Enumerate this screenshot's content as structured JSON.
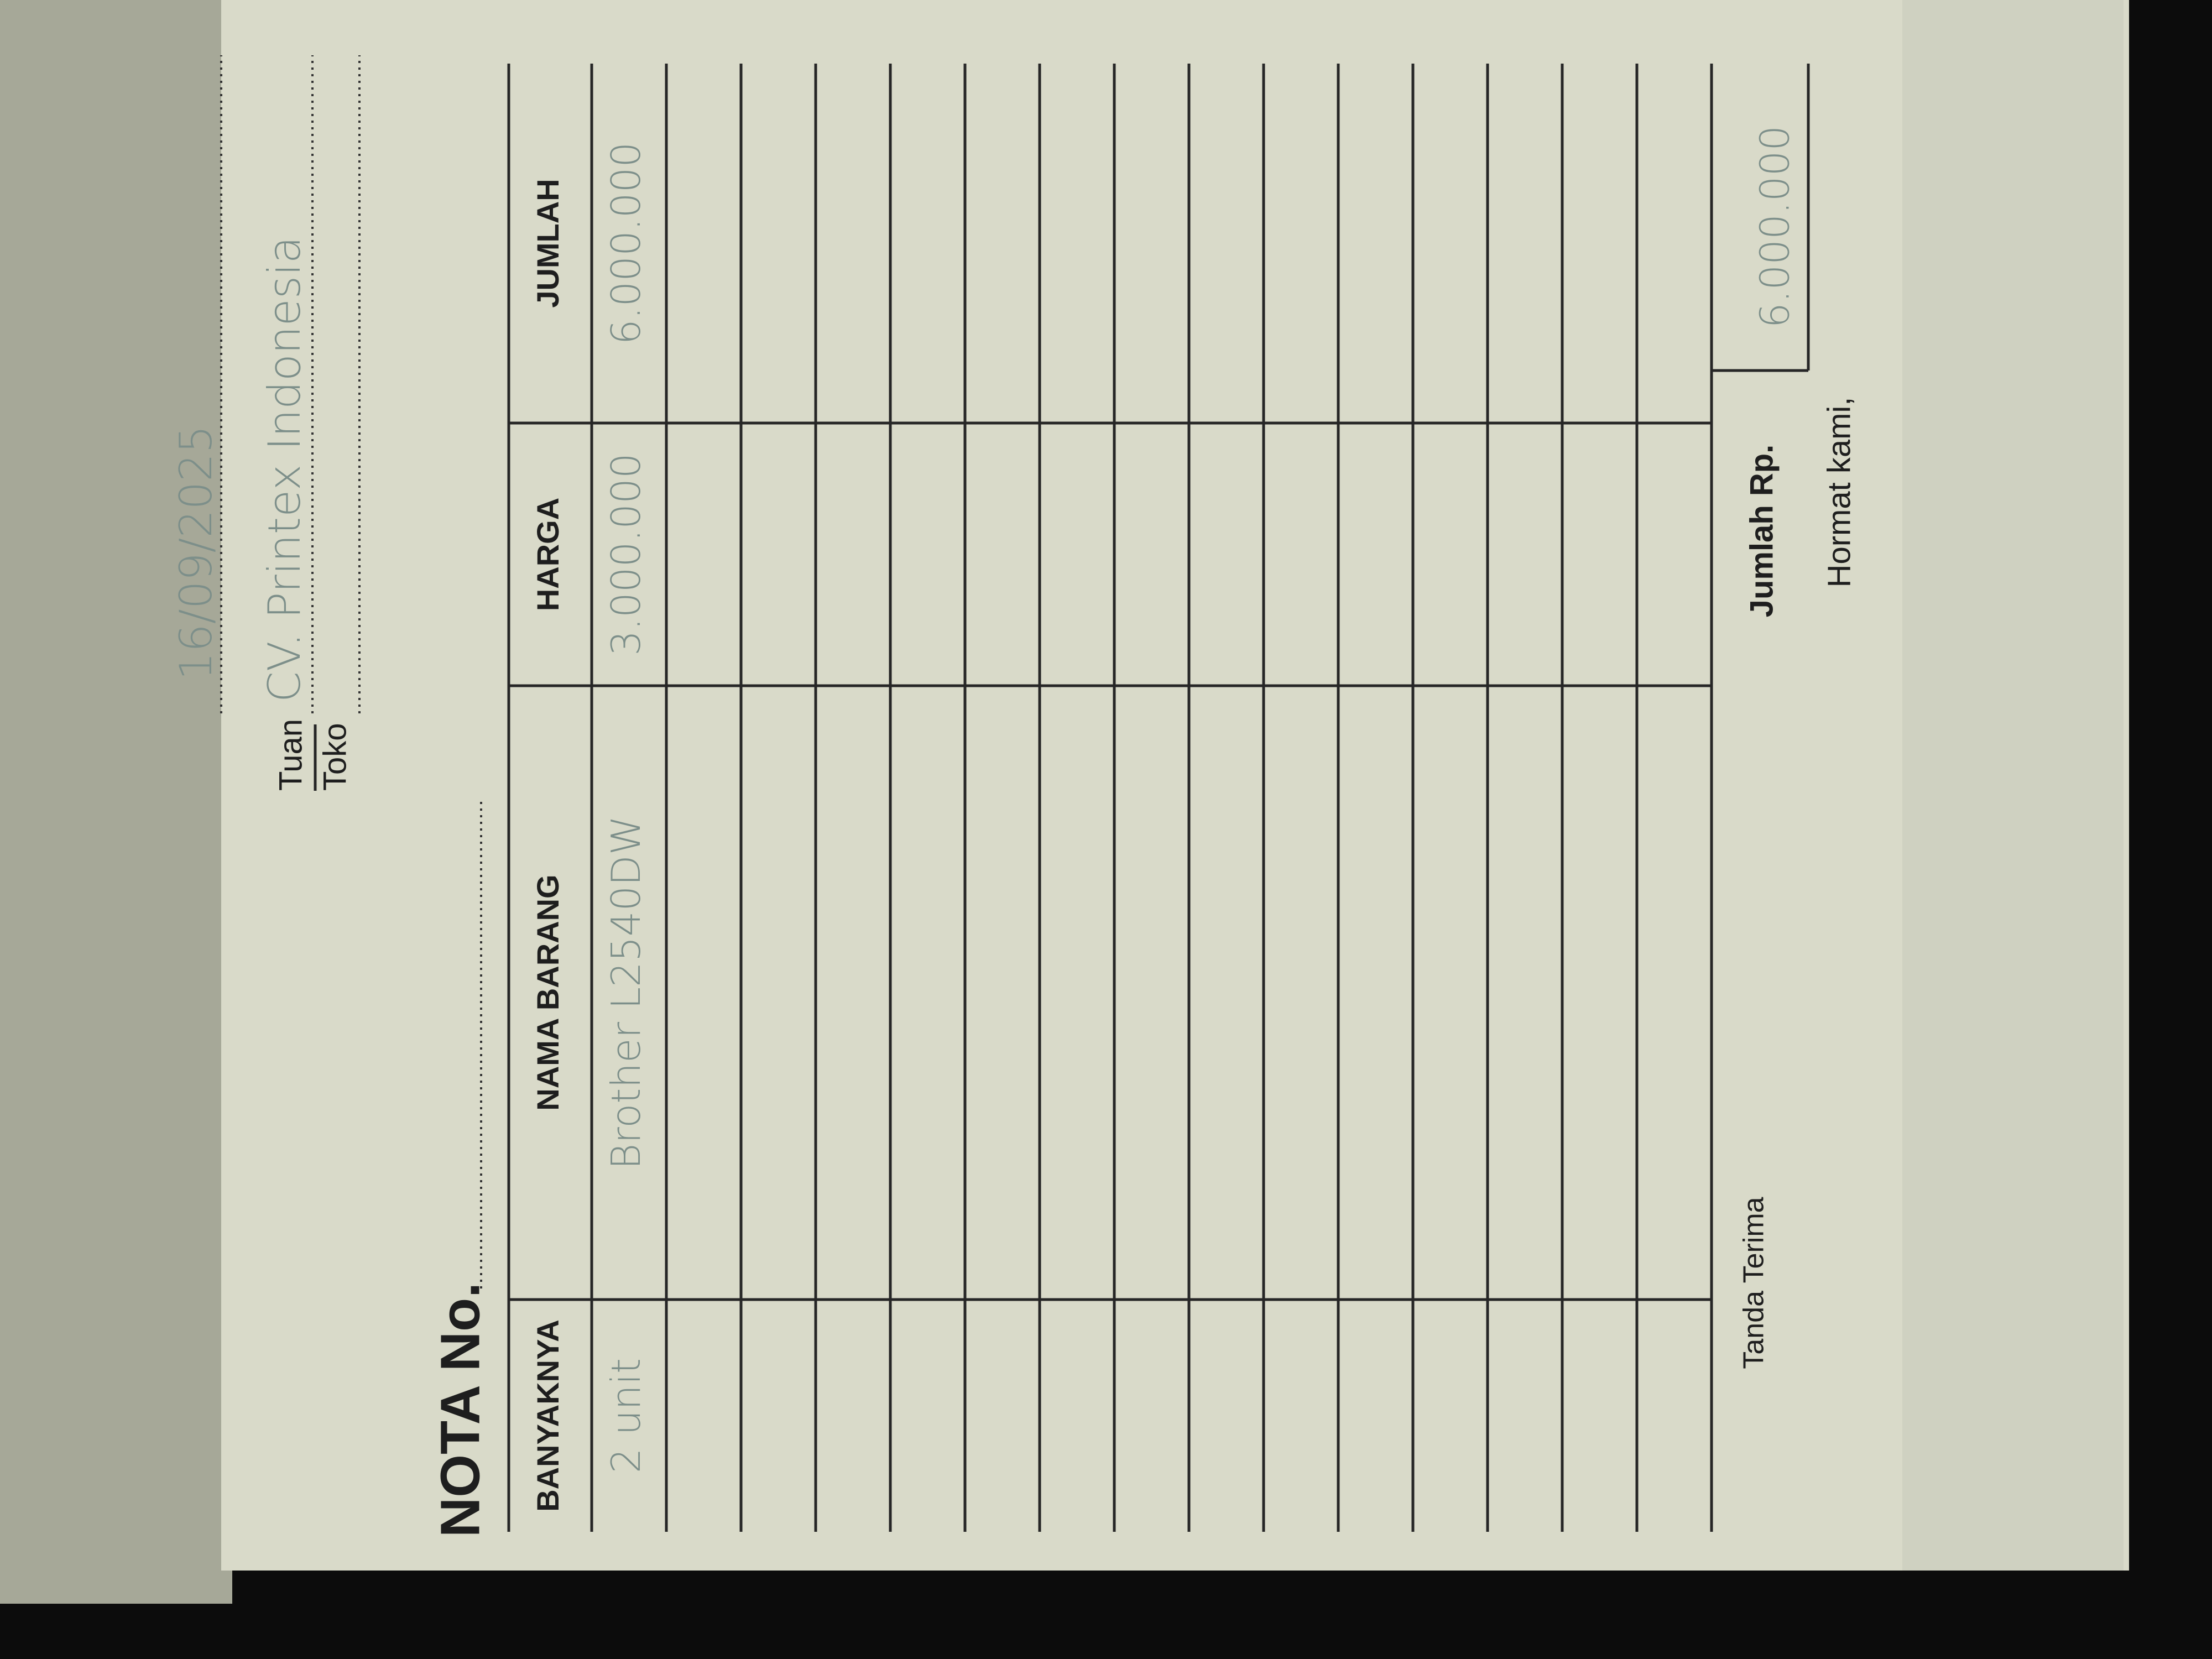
{
  "header": {
    "nota_label": "NOTA No.",
    "tuan": "Tuan",
    "toko": "Toko",
    "date": "16/09/2025",
    "customer": "CV. Printex Indonesia"
  },
  "table": {
    "columns": [
      "BANYAKNYA",
      "NAMA BARANG",
      "HARGA",
      "JUMLAH"
    ],
    "rows": [
      [
        "2 unit",
        "Brother L2540DW",
        "3.000.000",
        "6.000.000"
      ]
    ]
  },
  "footer": {
    "tanda_terima": "Tanda Terima",
    "total_label": "Jumlah Rp.",
    "total": "6.000.000",
    "hormat": "Hormat kami,"
  }
}
